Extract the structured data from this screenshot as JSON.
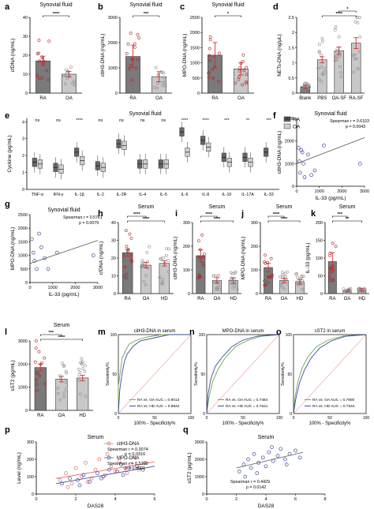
{
  "panel_letters": [
    "a",
    "b",
    "c",
    "d",
    "e",
    "f",
    "g",
    "h",
    "i",
    "j",
    "k",
    "l",
    "m",
    "n",
    "o",
    "p",
    "q"
  ],
  "chart_data": [
    {
      "id": "a",
      "type": "bar",
      "title": "Synovial fluid",
      "ylabel": "cfDNA (ng/mL)",
      "categories": [
        "RA",
        "OA"
      ],
      "values": [
        17,
        10
      ],
      "errors": [
        2.5,
        1.5
      ],
      "yticks": [
        0,
        10,
        20,
        30,
        40
      ],
      "ylim": [
        0,
        40
      ],
      "colors": [
        "#b22222",
        "#8e8e8e"
      ],
      "significance": [
        {
          "from": 0,
          "to": 1,
          "label": "****"
        }
      ]
    },
    {
      "id": "b",
      "type": "bar",
      "title": "Synovial fluid",
      "ylabel": "citH3-DNA (ng/mL)",
      "categories": [
        "RA",
        "OA"
      ],
      "values": [
        1450,
        650
      ],
      "errors": [
        450,
        200
      ],
      "yticks": [
        0,
        1000,
        2000,
        3000
      ],
      "ylim": [
        0,
        3000
      ],
      "colors": [
        "#b22222",
        "#8e8e8e"
      ],
      "significance": [
        {
          "from": 0,
          "to": 1,
          "label": "***"
        }
      ]
    },
    {
      "id": "c",
      "type": "bar",
      "title": "Synovial fluid",
      "ylabel": "MPO-DNA (ng/mL)",
      "categories": [
        "RA",
        "OA"
      ],
      "values": [
        1250,
        800
      ],
      "errors": [
        420,
        200
      ],
      "yticks": [
        0,
        500,
        1000,
        1500,
        2000,
        2500
      ],
      "ylim": [
        0,
        2500
      ],
      "colors": [
        "#b22222",
        "#b22222"
      ],
      "significance": [
        {
          "from": 0,
          "to": 1,
          "label": "*"
        }
      ]
    },
    {
      "id": "d",
      "type": "bar",
      "title": "",
      "ylabel": "NETs-DNA (ng/μL)",
      "categories": [
        "Blank",
        "PBS",
        "OA-SF",
        "RA-SF"
      ],
      "values": [
        0.2,
        1.1,
        1.4,
        1.65
      ],
      "errors": [
        0.05,
        0.1,
        0.12,
        0.18
      ],
      "yticks": [
        0.0,
        0.5,
        1.0,
        1.5,
        2.0,
        2.5
      ],
      "ylim": [
        0,
        2.5
      ],
      "colors": [
        "#8e8e8e",
        "#8e8e8e",
        "#8e8e8e",
        "#8e8e8e"
      ],
      "significance": [
        {
          "from": 1,
          "to": 3,
          "label": "****"
        },
        {
          "from": 2,
          "to": 3,
          "label": "*"
        }
      ]
    },
    {
      "id": "e",
      "type": "box",
      "title": "Synovial fluid",
      "ylabel": "Cyckine (pg/mL)",
      "categories": [
        "TNF-α",
        "IFN-γ",
        "IL-1β",
        "IL-2",
        "IL-2R",
        "IL-4",
        "IL-5",
        "IL-6",
        "IL-8",
        "IL-10",
        "IL-17A",
        "IL-33"
      ],
      "yticks": [
        0,
        1,
        2,
        3,
        4
      ],
      "series": [
        {
          "name": "RA",
          "color": "#666666",
          "medians": [
            1.6,
            1.3,
            2.2,
            1.4,
            2.7,
            1.5,
            1.5,
            3.4,
            2.9,
            1.9,
            1.9,
            2.2
          ]
        },
        {
          "name": "OA",
          "color": "#cfcfcf",
          "medians": [
            1.5,
            1.2,
            1.7,
            1.3,
            2.6,
            1.5,
            1.5,
            2.2,
            2.5,
            1.6,
            1.6,
            null
          ]
        }
      ],
      "significance": [
        "ns",
        "ns",
        "****",
        "ns",
        "ns",
        "ns",
        "ns",
        "****",
        "****",
        "***",
        "**",
        "***"
      ]
    },
    {
      "id": "f",
      "type": "scatter",
      "title": "Synovial fluid",
      "xlabel": "IL-33 (pg/mL)",
      "ylabel": "citH3-DNA (ng/mL)",
      "xlim": [
        0,
        3000
      ],
      "ylim": [
        0,
        3000
      ],
      "xticks": [
        0,
        1000,
        2000,
        3000
      ],
      "yticks": [
        0,
        1000,
        2000,
        3000
      ],
      "x": [
        80,
        120,
        150,
        200,
        250,
        300,
        350,
        500,
        650,
        800,
        1200,
        2800
      ],
      "y": [
        1700,
        1100,
        600,
        1600,
        1500,
        1000,
        400,
        1400,
        500,
        700,
        1800,
        1000
      ],
      "fit": [
        [
          0,
          1000
        ],
        [
          3000,
          2150
        ]
      ],
      "annotation": [
        "Spearman r = 0.6103",
        "p = 0.0043"
      ]
    },
    {
      "id": "g",
      "type": "scatter",
      "title": "Synovial fluid",
      "xlabel": "IL-33 (pg/mL)",
      "ylabel": "MPO-DNA (ng/mL)",
      "xlim": [
        0,
        3000
      ],
      "ylim": [
        0,
        2500
      ],
      "xticks": [
        0,
        1000,
        2000,
        3000
      ],
      "yticks": [
        0,
        500,
        1000,
        1500,
        2000,
        2500
      ],
      "x": [
        80,
        150,
        200,
        300,
        400,
        500,
        650,
        800,
        1200,
        2800
      ],
      "y": [
        1600,
        1100,
        800,
        500,
        1800,
        1300,
        900,
        500,
        1100,
        1000
      ],
      "fit": [
        [
          0,
          700
        ],
        [
          3000,
          1550
        ]
      ],
      "annotation": [
        "Spearman r = 0.5761",
        "p = 0.0079"
      ]
    },
    {
      "id": "h",
      "type": "bar",
      "title": "Serum",
      "ylabel": "cfDNA (ng/mL)",
      "categories": [
        "RA",
        "OA",
        "HD"
      ],
      "values": [
        23,
        16,
        17
      ],
      "errors": [
        2,
        1.5,
        1.5
      ],
      "yticks": [
        0,
        10,
        20,
        30,
        40
      ],
      "ylim": [
        0,
        40
      ],
      "colors": [
        "#b22222",
        "#8e8e8e",
        "#8e8e8e"
      ],
      "significance": [
        {
          "from": 0,
          "to": 2,
          "label": "****"
        },
        {
          "from": 0,
          "to": 1,
          "label": "****"
        }
      ]
    },
    {
      "id": "i",
      "type": "bar",
      "title": "Serum",
      "ylabel": "citH3-DNA (ng/mL)",
      "categories": [
        "RA",
        "OA",
        "HD"
      ],
      "values": [
        160,
        55,
        55
      ],
      "errors": [
        25,
        12,
        12
      ],
      "yticks": [
        0,
        100,
        200,
        300
      ],
      "ylim": [
        0,
        300
      ],
      "colors": [
        "#b22222",
        "#8e8e8e",
        "#8e8e8e"
      ],
      "significance": [
        {
          "from": 0,
          "to": 2,
          "label": "****"
        },
        {
          "from": 0,
          "to": 1,
          "label": "****"
        }
      ]
    },
    {
      "id": "j",
      "type": "bar",
      "title": "Serum",
      "ylabel": "MPO-DNA (ng/mL)",
      "categories": [
        "RA",
        "OA",
        "HD"
      ],
      "values": [
        110,
        55,
        50
      ],
      "errors": [
        18,
        10,
        10
      ],
      "yticks": [
        0,
        100,
        200,
        300
      ],
      "ylim": [
        0,
        300
      ],
      "colors": [
        "#b22222",
        "#8e8e8e",
        "#8e8e8e"
      ],
      "significance": [
        {
          "from": 0,
          "to": 2,
          "label": "****"
        },
        {
          "from": 0,
          "to": 1,
          "label": "****"
        }
      ]
    },
    {
      "id": "k",
      "type": "bar",
      "title": "Serum",
      "ylabel": "IL-33 (pg/mL)",
      "categories": [
        "RA",
        "OA",
        "HD"
      ],
      "values": [
        90,
        8,
        10
      ],
      "errors": [
        25,
        3,
        4
      ],
      "yticks": [
        0,
        50,
        100,
        150,
        200
      ],
      "ylim": [
        0,
        200
      ],
      "colors": [
        "#b22222",
        "#8e8e8e",
        "#8e8e8e"
      ],
      "significance": [
        {
          "from": 0,
          "to": 2,
          "label": "**"
        },
        {
          "from": 0,
          "to": 1,
          "label": "***"
        }
      ]
    },
    {
      "id": "l",
      "type": "bar",
      "title": "Serum",
      "ylabel": "sST2 (pg/mL)",
      "categories": [
        "RA",
        "OA",
        "HD"
      ],
      "values": [
        1850,
        1350,
        1400
      ],
      "errors": [
        150,
        120,
        120
      ],
      "yticks": [
        0,
        1000,
        2000,
        3000
      ],
      "ylim": [
        0,
        3000
      ],
      "colors": [
        "#b22222",
        "#8e8e8e",
        "#8e8e8e"
      ],
      "significance": [
        {
          "from": 0,
          "to": 2,
          "label": "****"
        },
        {
          "from": 0,
          "to": 1,
          "label": "***"
        }
      ]
    },
    {
      "id": "m",
      "type": "roc",
      "title": "citH3-DNA in serum",
      "xlabel": "100% - Specificity%",
      "ylabel": "Sensitivity%",
      "xticks": [
        0,
        50,
        100
      ],
      "yticks": [
        0,
        50,
        100
      ],
      "series": [
        {
          "name": "RA vs. OA AUC = 0.9013",
          "color": "#6aa84f",
          "points": [
            [
              0,
              0
            ],
            [
              0,
              35
            ],
            [
              3,
              55
            ],
            [
              5,
              70
            ],
            [
              10,
              80
            ],
            [
              15,
              88
            ],
            [
              25,
              93
            ],
            [
              40,
              97
            ],
            [
              60,
              100
            ],
            [
              100,
              100
            ]
          ]
        },
        {
          "name": "RA vs. HD AUC = 0.8842",
          "color": "#3d4a9a",
          "points": [
            [
              0,
              0
            ],
            [
              2,
              30
            ],
            [
              5,
              50
            ],
            [
              8,
              65
            ],
            [
              12,
              75
            ],
            [
              20,
              85
            ],
            [
              30,
              92
            ],
            [
              50,
              96
            ],
            [
              70,
              100
            ],
            [
              100,
              100
            ]
          ]
        }
      ]
    },
    {
      "id": "n",
      "type": "roc",
      "title": "MPO-DNA in serum",
      "xlabel": "100% - Specificity%",
      "ylabel": "Sensitivity%",
      "xticks": [
        0,
        50,
        100
      ],
      "yticks": [
        0,
        50,
        100
      ],
      "series": [
        {
          "name": "RA vs. OA AUC = 0.7484",
          "color": "#6aa84f",
          "points": [
            [
              0,
              0
            ],
            [
              3,
              20
            ],
            [
              8,
              40
            ],
            [
              15,
              55
            ],
            [
              25,
              70
            ],
            [
              40,
              85
            ],
            [
              55,
              92
            ],
            [
              75,
              98
            ],
            [
              100,
              100
            ]
          ]
        },
        {
          "name": "RA vs. HD AUC = 0.7641",
          "color": "#3d4a9a",
          "points": [
            [
              0,
              0
            ],
            [
              2,
              25
            ],
            [
              6,
              45
            ],
            [
              12,
              60
            ],
            [
              22,
              72
            ],
            [
              35,
              85
            ],
            [
              50,
              93
            ],
            [
              70,
              98
            ],
            [
              100,
              100
            ]
          ]
        }
      ]
    },
    {
      "id": "o",
      "type": "roc",
      "title": "sST2 in serum",
      "xlabel": "100% - Specificity%",
      "ylabel": "Sensitivity%",
      "xticks": [
        0,
        50,
        100
      ],
      "yticks": [
        0,
        50,
        100
      ],
      "series": [
        {
          "name": "RA vs. OA AUC = 0.7900",
          "color": "#6aa84f",
          "points": [
            [
              0,
              0
            ],
            [
              2,
              20
            ],
            [
              6,
              40
            ],
            [
              12,
              58
            ],
            [
              20,
              72
            ],
            [
              32,
              85
            ],
            [
              48,
              93
            ],
            [
              68,
              98
            ],
            [
              100,
              100
            ]
          ]
        },
        {
          "name": "RA vs. HD AUC = 0.7644",
          "color": "#3d4a9a",
          "points": [
            [
              0,
              0
            ],
            [
              3,
              18
            ],
            [
              8,
              38
            ],
            [
              15,
              55
            ],
            [
              24,
              70
            ],
            [
              36,
              83
            ],
            [
              52,
              92
            ],
            [
              72,
              98
            ],
            [
              100,
              100
            ]
          ]
        }
      ]
    },
    {
      "id": "p",
      "type": "scatter",
      "title": "Serum",
      "xlabel": "DAS28",
      "ylabel": "Level (ng/mL)",
      "xlim": [
        0,
        6
      ],
      "ylim": [
        0,
        300
      ],
      "xticks": [
        0,
        2,
        4,
        6
      ],
      "yticks": [
        0,
        100,
        200,
        300
      ],
      "series": [
        {
          "name": "citH3-DNA",
          "color": "#e06666",
          "x": [
            1.2,
            1.5,
            1.8,
            2.0,
            2.3,
            2.5,
            2.8,
            3.0,
            3.2,
            3.5,
            3.8,
            4.0,
            4.2,
            4.5,
            4.8,
            5.0,
            5.2,
            5.5,
            1.6,
            2.6,
            3.6,
            4.6
          ],
          "y": [
            80,
            120,
            60,
            150,
            100,
            180,
            90,
            140,
            200,
            110,
            160,
            130,
            190,
            150,
            170,
            210,
            140,
            180,
            40,
            70,
            230,
            120
          ],
          "fit": [
            [
              1,
              90
            ],
            [
              6,
              185
            ]
          ]
        },
        {
          "name": "MPO-DNA",
          "color": "#3d4a9a",
          "x": [
            1.3,
            1.7,
            2.1,
            2.4,
            2.7,
            3.1,
            3.4,
            3.7,
            4.1,
            4.4,
            4.7,
            5.1,
            5.4,
            2.2,
            3.3,
            4.3
          ],
          "y": [
            60,
            90,
            80,
            110,
            70,
            120,
            100,
            140,
            130,
            110,
            150,
            160,
            140,
            50,
            90,
            170
          ],
          "fit": [
            [
              1,
              60
            ],
            [
              6,
              160
            ]
          ]
        }
      ],
      "annotation": [
        "Spearman r = 0.3074",
        "p = 0.0316",
        "Spearman r = 0.5192",
        "p = 0.0001"
      ]
    },
    {
      "id": "q",
      "type": "scatter",
      "title": "Serum",
      "xlabel": "DAS28",
      "ylabel": "sST2 (pg/mL)",
      "xlim": [
        0,
        8
      ],
      "ylim": [
        0,
        3000
      ],
      "xticks": [
        0,
        2,
        4,
        6,
        8
      ],
      "yticks": [
        0,
        1000,
        2000,
        3000
      ],
      "x": [
        2.2,
        2.5,
        2.8,
        3.0,
        3.2,
        3.5,
        3.8,
        4.0,
        4.2,
        4.5,
        4.8,
        5.0,
        5.3,
        5.6,
        6.0,
        6.3,
        3.4,
        4.4,
        5.4,
        2.6
      ],
      "y": [
        1300,
        1700,
        2000,
        1500,
        2300,
        1800,
        2100,
        1600,
        2400,
        1900,
        2200,
        2600,
        2000,
        2300,
        2500,
        2100,
        1200,
        2700,
        1700,
        1000
      ],
      "fit": [
        [
          2,
          1500
        ],
        [
          6.5,
          2400
        ]
      ],
      "annotation": [
        "Spearman r = 0.4429",
        "p = 0.0142"
      ]
    }
  ]
}
